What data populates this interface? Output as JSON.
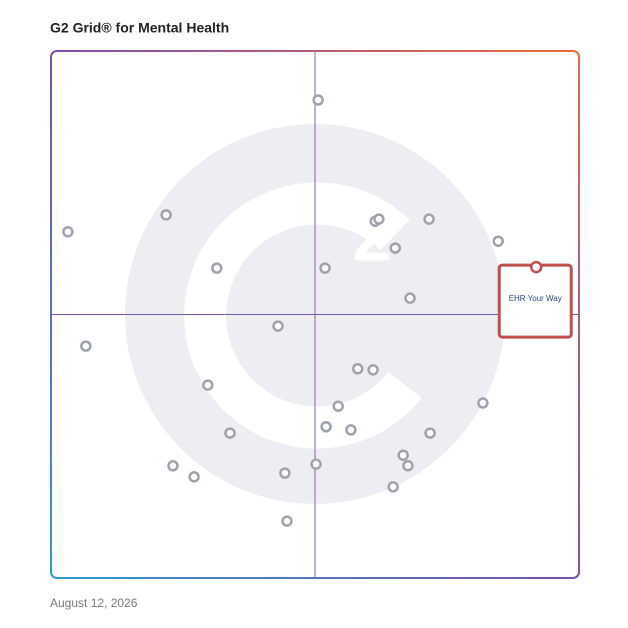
{
  "chart_data": {
    "type": "scatter",
    "title": "G2 Grid® for Mental Health",
    "date": "August 12, 2026",
    "xlim": [
      0,
      100
    ],
    "ylim": [
      0,
      100
    ],
    "quadrants": true,
    "series": [
      {
        "color": "#9ea3ad",
        "x": [
          50.6,
          21.8,
          3.2,
          61.4,
          62.1,
          71.6,
          65.2,
          84.7,
          31.4,
          51.9,
          68.0,
          43.0,
          6.6,
          58.1,
          61.0,
          29.7,
          54.4,
          81.8,
          52.1,
          56.8,
          33.9,
          71.8,
          66.7,
          67.6,
          50.2,
          23.1,
          27.1,
          44.3,
          64.8,
          44.7
        ],
        "values": [
          90.7,
          68.9,
          65.7,
          67.7,
          68.1,
          68.1,
          62.6,
          63.9,
          58.8,
          58.8,
          53.1,
          47.8,
          44.0,
          39.7,
          39.5,
          36.6,
          32.6,
          33.2,
          28.7,
          28.1,
          27.5,
          27.5,
          23.3,
          21.3,
          21.6,
          21.3,
          19.2,
          19.9,
          17.3,
          10.8
        ]
      },
      {
        "name": "EHR Your Way",
        "color": "#c0504d",
        "x": [
          91.9
        ],
        "values": [
          59.0
        ]
      }
    ]
  }
}
